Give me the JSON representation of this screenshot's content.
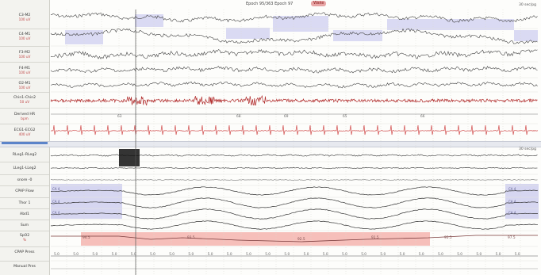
{
  "header": {
    "epoch_title": "Epoch 95/363 Epoch 97",
    "epoch_badge": "Wake",
    "scale_top": "30 sec/pg",
    "scale_bottom": "30 sec/pg"
  },
  "channels": [
    {
      "name": "C3-M2",
      "sub": "100 uV"
    },
    {
      "name": "C4-M1",
      "sub": "100 uV"
    },
    {
      "name": "F3-M2",
      "sub": "100 uV"
    },
    {
      "name": "F4-M1",
      "sub": "100 uV"
    },
    {
      "name": "O2-M1",
      "sub": "100 uV"
    },
    {
      "name": "Chin1-Chin2",
      "sub": "50 uV"
    },
    {
      "name": "Derived HR",
      "sub": "bpm"
    },
    {
      "name": "ECG1-ECG2",
      "sub": "400 uV"
    },
    {
      "name": "RLeg1-RLeg2",
      "sub": ""
    },
    {
      "name": "LLeg1-LLeg2",
      "sub": ""
    },
    {
      "name": "snore -0",
      "sub": ""
    },
    {
      "name": "CPAP Flow",
      "sub": ""
    },
    {
      "name": "Thor 1",
      "sub": ""
    },
    {
      "name": "Abd1",
      "sub": ""
    },
    {
      "name": "Sum",
      "sub": ""
    },
    {
      "name": "SpO2",
      "sub": "%"
    },
    {
      "name": "CPAP Press",
      "sub": ""
    },
    {
      "name": "Manual Pres",
      "sub": ""
    }
  ],
  "hr_ticks": [
    "63",
    "68",
    "69",
    "65",
    "66"
  ],
  "spo2_values": [
    "94.5",
    "93.5",
    "92.5",
    "91.5",
    "95.5",
    "97.5"
  ],
  "cpap_values": [
    "5.0",
    "5.0",
    "5.0",
    "5.0",
    "5.0",
    "5.0",
    "5.0",
    "5.0",
    "5.0",
    "5.0",
    "5.0",
    "5.0",
    "5.0",
    "5.0",
    "5.0",
    "5.0",
    "5.0",
    "5.0",
    "5.0",
    "5.0",
    "5.0",
    "5.0",
    "5.0",
    "5.0",
    "5.0"
  ],
  "respiratory_box_labels": [
    "CA 4",
    "CA 4",
    "CA 4",
    "CA 4",
    "CA 4",
    "CA 4"
  ],
  "colors": {
    "eeg": "#444444",
    "chin": "#b02a2a",
    "ecg": "#d04a4a",
    "highlight_blue": "#c8c8ee",
    "highlight_red": "#f4b4ae",
    "cursor": "#555555"
  }
}
